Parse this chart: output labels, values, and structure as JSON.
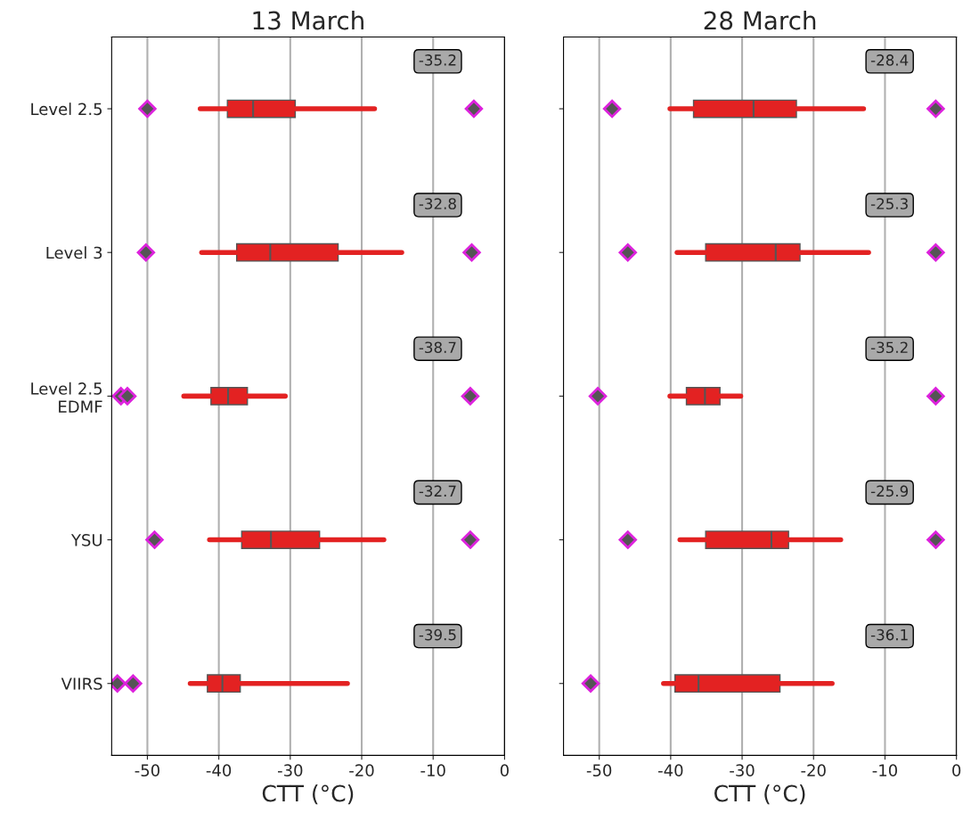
{
  "chart_data": [
    {
      "type": "box",
      "title": "13 March",
      "xlabel": "CTT (°C)",
      "orientation": "horizontal",
      "color": "#e32222",
      "grid": "x",
      "categories": [
        "Level 2.5",
        "Level 3",
        "Level 2.5\nEDMF",
        "YSU",
        "VIIRS"
      ],
      "boxes": [
        {
          "low": -42.6,
          "q1": -38.8,
          "median": -35.2,
          "q3": -29.3,
          "high": -18.2,
          "outliers": [
            -50.0,
            -4.3
          ]
        },
        {
          "low": -42.4,
          "q1": -37.5,
          "median": -32.8,
          "q3": -23.3,
          "high": -14.4,
          "outliers": [
            -50.2,
            -4.6
          ]
        },
        {
          "low": -44.9,
          "q1": -41.1,
          "median": -38.7,
          "q3": -36.0,
          "high": -30.7,
          "outliers": [
            -53.7,
            -52.8,
            -4.8
          ]
        },
        {
          "low": -41.3,
          "q1": -36.8,
          "median": -32.7,
          "q3": -25.9,
          "high": -16.9,
          "outliers": [
            -49.0,
            -4.8
          ]
        },
        {
          "low": -44.0,
          "q1": -41.6,
          "median": -39.5,
          "q3": -37.0,
          "high": -22.0,
          "outliers": [
            -54.2,
            -52.0
          ]
        }
      ],
      "annotations": [
        "-35.2",
        "-32.8",
        "-38.7",
        "-32.7",
        "-39.5"
      ],
      "xlim": [
        -55,
        0
      ],
      "xticks": [
        -50,
        -40,
        -30,
        -20,
        -10,
        0
      ]
    },
    {
      "type": "box",
      "title": "28 March",
      "xlabel": "CTT (°C)",
      "orientation": "horizontal",
      "color": "#e32222",
      "grid": "x",
      "tick_labels": "x",
      "categories": [
        null,
        null,
        null,
        null,
        null
      ],
      "boxes": [
        {
          "low": -40.1,
          "q1": -36.8,
          "median": -28.4,
          "q3": -22.4,
          "high": -13.0,
          "outliers": [
            -48.2,
            -2.9
          ]
        },
        {
          "low": -39.1,
          "q1": -35.1,
          "median": -25.3,
          "q3": -21.9,
          "high": -12.3,
          "outliers": [
            -46.0,
            -2.9
          ]
        },
        {
          "low": -40.1,
          "q1": -37.8,
          "median": -35.2,
          "q3": -33.1,
          "high": -30.2,
          "outliers": [
            -50.2,
            -2.9
          ]
        },
        {
          "low": -38.7,
          "q1": -35.1,
          "median": -25.9,
          "q3": -23.5,
          "high": -16.2,
          "outliers": [
            -46.0,
            -2.9
          ]
        },
        {
          "low": -41.0,
          "q1": -39.4,
          "median": -36.1,
          "q3": -24.7,
          "high": -17.4,
          "outliers": [
            -51.2
          ]
        }
      ],
      "annotations": [
        "-28.4",
        "-25.3",
        "-35.2",
        "-25.9",
        "-36.1"
      ],
      "xlim": [
        -55,
        0
      ],
      "xticks": [
        -50,
        -40,
        -30,
        -20,
        -10,
        0
      ]
    }
  ]
}
